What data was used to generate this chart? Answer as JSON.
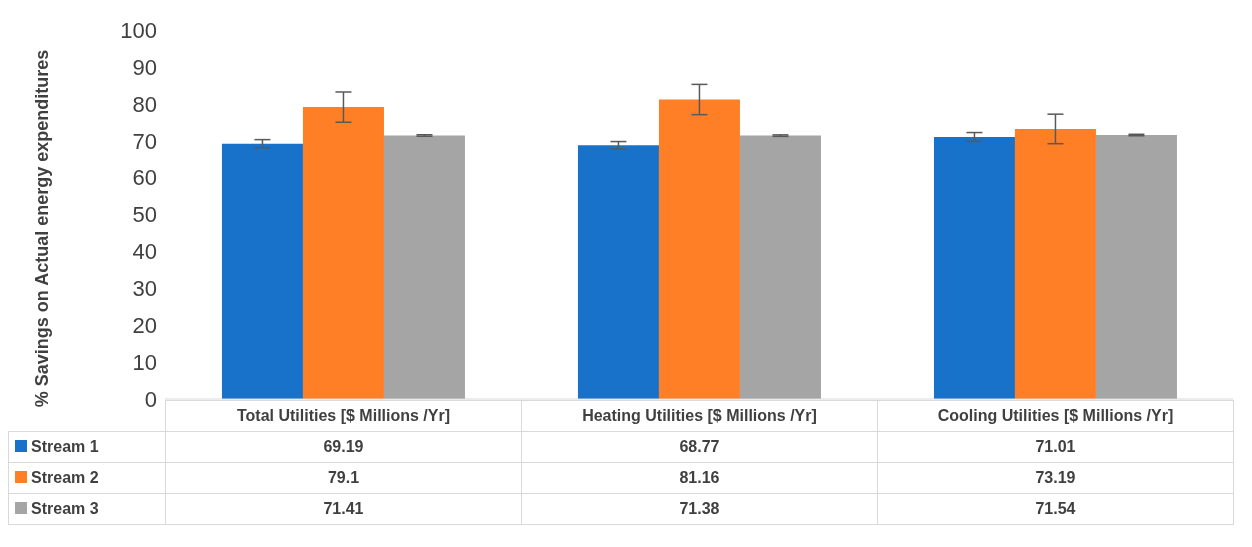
{
  "chart_data": {
    "type": "bar",
    "ylabel": "% Savings on Actual energy expenditures",
    "categories": [
      "Total Utilities [$ Millions /Yr]",
      "Heating Utilities [$ Millions /Yr]",
      "Cooling Utilities [$ Millions /Yr]"
    ],
    "series": [
      {
        "name": "Stream 1",
        "color": "#1872c9",
        "values": [
          69.19,
          68.77,
          71.01
        ],
        "errors": [
          1.1,
          1.0,
          1.2
        ]
      },
      {
        "name": "Stream 2",
        "color": "#ff7f27",
        "values": [
          79.1,
          81.16,
          73.19
        ],
        "errors": [
          4.1,
          4.1,
          4.0
        ]
      },
      {
        "name": "Stream 3",
        "color": "#a5a5a5",
        "values": [
          71.41,
          71.38,
          71.54
        ],
        "errors": [
          0.2,
          0.2,
          0.2
        ]
      }
    ],
    "ylim": [
      0,
      100
    ],
    "yticks": [
      0,
      10,
      20,
      30,
      40,
      50,
      60,
      70,
      80,
      90,
      100
    ],
    "grid": false,
    "data_labels": true,
    "legend": "bottom"
  }
}
